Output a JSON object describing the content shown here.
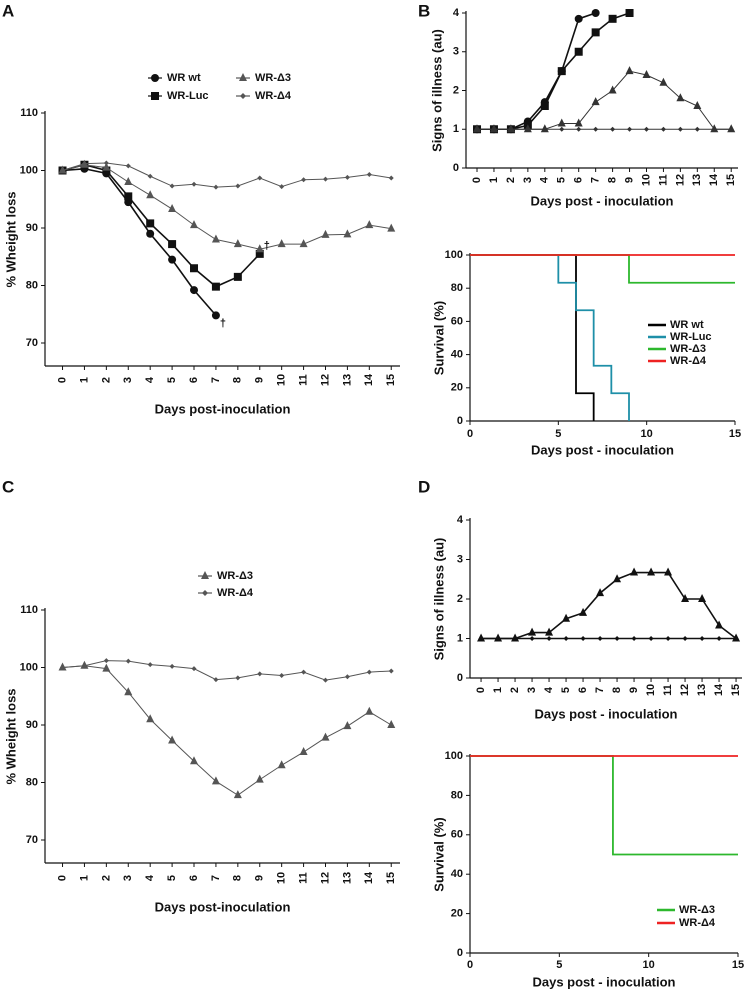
{
  "panel_labels": [
    "A",
    "B",
    "C",
    "D"
  ],
  "chart_data": [
    {
      "type": "line",
      "y_label": "% Wheight loss",
      "x_label": "Days post-inoculation",
      "xlim": [
        -0.8,
        15.4
      ],
      "xticks": [
        0,
        1,
        2,
        3,
        4,
        5,
        6,
        7,
        8,
        9,
        10,
        11,
        12,
        13,
        14,
        15
      ],
      "ylim": [
        66,
        110
      ],
      "yticks": [
        70,
        80,
        90,
        100,
        110
      ],
      "annotations": [
        "†",
        "†"
      ],
      "series": [
        {
          "name": "WR wt",
          "color": "#111111",
          "marker": "circle",
          "x": [
            0,
            1,
            2,
            3,
            4,
            5,
            6,
            7
          ],
          "values": [
            100,
            100.3,
            99.5,
            94.5,
            89,
            84.5,
            79.2,
            74.8
          ]
        },
        {
          "name": "WR-Luc",
          "color": "#111111",
          "marker": "square",
          "x": [
            0,
            1,
            2,
            3,
            4,
            5,
            6,
            7,
            8,
            9
          ],
          "values": [
            100,
            101,
            100,
            95.5,
            90.8,
            87.2,
            83,
            79.8,
            81.5,
            85.5
          ]
        },
        {
          "name": "WR-Δ3",
          "color": "#555555",
          "marker": "triangle",
          "x": [
            0,
            1,
            2,
            3,
            4,
            5,
            6,
            7,
            8,
            9,
            10,
            11,
            12,
            13,
            14,
            15
          ],
          "values": [
            100,
            101,
            100.5,
            98,
            95.7,
            93.3,
            90.5,
            88,
            87.2,
            86.3,
            87.2,
            87.2,
            88.8,
            88.9,
            90.5,
            89.9
          ]
        },
        {
          "name": "WR-Δ4",
          "color": "#555555",
          "marker": "diamond",
          "x": [
            0,
            1,
            2,
            3,
            4,
            5,
            6,
            7,
            8,
            9,
            10,
            11,
            12,
            13,
            14,
            15
          ],
          "values": [
            100,
            101.2,
            101.3,
            100.8,
            99,
            97.3,
            97.6,
            97.1,
            97.3,
            98.7,
            97.2,
            98.4,
            98.5,
            98.8,
            99.3,
            98.7
          ]
        }
      ]
    },
    {
      "type": "line",
      "y_label": "Signs of illness (au)",
      "x_label": "Days post - inoculation",
      "xlim": [
        -0.65,
        15.4
      ],
      "xticks": [
        0,
        1,
        2,
        3,
        4,
        5,
        6,
        7,
        8,
        9,
        10,
        11,
        12,
        13,
        14,
        15
      ],
      "ylim": [
        0,
        4
      ],
      "yticks": [
        0,
        1,
        2,
        3,
        4
      ],
      "series": [
        {
          "name": "WR wt",
          "color": "#111111",
          "marker": "circle",
          "x": [
            0,
            1,
            2,
            3,
            4,
            5,
            6,
            7
          ],
          "values": [
            1,
            1,
            1,
            1.2,
            1.7,
            2.5,
            3.85,
            4
          ]
        },
        {
          "name": "WR-Luc",
          "color": "#111111",
          "marker": "square",
          "x": [
            0,
            1,
            2,
            3,
            4,
            5,
            6,
            7,
            8,
            9
          ],
          "values": [
            1,
            1,
            1,
            1.1,
            1.6,
            2.5,
            3,
            3.5,
            3.85,
            4
          ]
        },
        {
          "name": "WR-Δ3",
          "color": "#333333",
          "marker": "triangle",
          "x": [
            0,
            1,
            2,
            3,
            4,
            5,
            6,
            7,
            8,
            9,
            10,
            11,
            12,
            13,
            14,
            15
          ],
          "values": [
            1,
            1,
            1,
            1,
            1,
            1.15,
            1.15,
            1.7,
            2,
            2.5,
            2.4,
            2.2,
            1.8,
            1.6,
            1,
            1
          ]
        },
        {
          "name": "WR-Δ4",
          "color": "#333333",
          "marker": "diamond",
          "x": [
            0,
            1,
            2,
            3,
            4,
            5,
            6,
            7,
            8,
            9,
            10,
            11,
            12,
            13,
            14,
            15
          ],
          "values": [
            1,
            1,
            1,
            1,
            1,
            1,
            1,
            1,
            1,
            1,
            1,
            1,
            1,
            1,
            1,
            1
          ]
        }
      ]
    },
    {
      "type": "step",
      "y_label": "Survival (%)",
      "x_label": "Days post - inoculation",
      "xlim": [
        0,
        15
      ],
      "xticks": [
        0,
        5,
        10,
        15
      ],
      "ylim": [
        0,
        100
      ],
      "yticks": [
        0,
        20,
        40,
        60,
        80,
        100
      ],
      "series": [
        {
          "name": "WR wt",
          "color": "#000000",
          "x": [
            0,
            6,
            7
          ],
          "values": [
            100,
            16.7,
            0
          ]
        },
        {
          "name": "WR-Luc",
          "color": "#1e8fa8",
          "x": [
            0,
            5,
            6,
            7,
            8,
            9
          ],
          "values": [
            100,
            83.3,
            66.7,
            33.3,
            16.7,
            0
          ]
        },
        {
          "name": "WR-Δ3",
          "color": "#2db82d",
          "x": [
            0,
            9,
            15
          ],
          "values": [
            100,
            83.3,
            83.3
          ]
        },
        {
          "name": "WR-Δ4",
          "color": "#ee2222",
          "x": [
            0,
            15
          ],
          "values": [
            100,
            100
          ]
        }
      ]
    },
    {
      "type": "line",
      "y_label": "% Wheight loss",
      "x_label": "Days post-inoculation",
      "xlim": [
        -0.8,
        15.4
      ],
      "xticks": [
        0,
        1,
        2,
        3,
        4,
        5,
        6,
        7,
        8,
        9,
        10,
        11,
        12,
        13,
        14,
        15
      ],
      "ylim": [
        66,
        110
      ],
      "yticks": [
        70,
        80,
        90,
        100,
        110
      ],
      "series": [
        {
          "name": "WR-Δ3",
          "color": "#555555",
          "marker": "triangle",
          "x": [
            0,
            1,
            2,
            3,
            4,
            5,
            6,
            7,
            8,
            9,
            10,
            11,
            12,
            13,
            14,
            15
          ],
          "values": [
            100,
            100.3,
            99.8,
            95.7,
            91,
            87.3,
            83.7,
            80.2,
            77.8,
            80.5,
            83,
            85.3,
            87.8,
            89.8,
            92.3,
            90
          ]
        },
        {
          "name": "WR-Δ4",
          "color": "#555555",
          "marker": "diamond",
          "x": [
            0,
            1,
            2,
            3,
            4,
            5,
            6,
            7,
            8,
            9,
            10,
            11,
            12,
            13,
            14,
            15
          ],
          "values": [
            100,
            100.3,
            101.2,
            101.1,
            100.5,
            100.2,
            99.8,
            97.9,
            98.2,
            98.9,
            98.6,
            99.2,
            97.8,
            98.4,
            99.2,
            99.4
          ]
        }
      ]
    },
    {
      "type": "line",
      "y_label": "Signs of illness (au)",
      "x_label": "Days post - inoculation",
      "xlim": [
        -0.65,
        15.35
      ],
      "xticks": [
        0,
        1,
        2,
        3,
        4,
        5,
        6,
        7,
        8,
        9,
        10,
        11,
        12,
        13,
        14,
        15
      ],
      "ylim": [
        0,
        4
      ],
      "yticks": [
        0,
        1,
        2,
        3,
        4
      ],
      "series": [
        {
          "name": "WR-Δ3",
          "color": "#111111",
          "marker": "triangle",
          "x": [
            0,
            1,
            2,
            3,
            4,
            5,
            6,
            7,
            8,
            9,
            10,
            11,
            12,
            13,
            14,
            15
          ],
          "values": [
            1,
            1,
            1,
            1.15,
            1.15,
            1.5,
            1.65,
            2.15,
            2.5,
            2.67,
            2.67,
            2.67,
            2,
            2,
            1.33,
            1
          ]
        },
        {
          "name": "WR-Δ4",
          "color": "#111111",
          "marker": "diamond",
          "x": [
            0,
            1,
            2,
            3,
            4,
            5,
            6,
            7,
            8,
            9,
            10,
            11,
            12,
            13,
            14,
            15
          ],
          "values": [
            1,
            1,
            1,
            1,
            1,
            1,
            1,
            1,
            1,
            1,
            1,
            1,
            1,
            1,
            1,
            1
          ]
        }
      ]
    },
    {
      "type": "step",
      "y_label": "Survival (%)",
      "x_label": "Days post - inoculation",
      "xlim": [
        0,
        15
      ],
      "xticks": [
        0,
        5,
        10,
        15
      ],
      "ylim": [
        0,
        100
      ],
      "yticks": [
        0,
        20,
        40,
        60,
        80,
        100
      ],
      "series": [
        {
          "name": "WR-Δ3",
          "color": "#2db82d",
          "x": [
            0,
            8,
            15
          ],
          "values": [
            100,
            50,
            50
          ]
        },
        {
          "name": "WR-Δ4",
          "color": "#ee2222",
          "x": [
            0,
            15
          ],
          "values": [
            100,
            100
          ]
        }
      ]
    }
  ]
}
